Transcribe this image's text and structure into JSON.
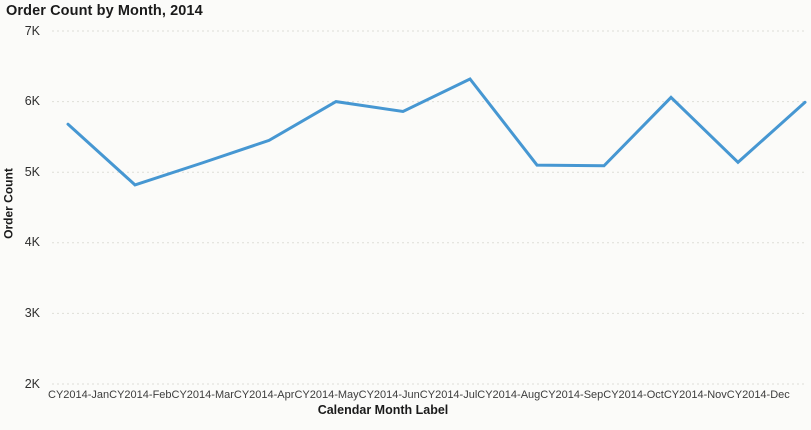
{
  "chart": {
    "title": "Order Count by Month, 2014",
    "y_axis_title": "Order Count",
    "x_axis_title": "Calendar Month Label"
  },
  "chart_data": {
    "type": "line",
    "title": "Order Count by Month, 2014",
    "xlabel": "Calendar Month Label",
    "ylabel": "Order Count",
    "categories": [
      "CY2014-Jan",
      "CY2014-Feb",
      "CY2014-Mar",
      "CY2014-Apr",
      "CY2014-May",
      "CY2014-Jun",
      "CY2014-Jul",
      "CY2014-Aug",
      "CY2014-Sep",
      "CY2014-Oct",
      "CY2014-Nov",
      "CY2014-Dec"
    ],
    "series": [
      {
        "name": "Order Count",
        "values": [
          5680,
          4820,
          5130,
          5450,
          6000,
          5860,
          6320,
          5100,
          5090,
          6060,
          5140,
          5990
        ]
      }
    ],
    "ylim": [
      2000,
      7000
    ],
    "y_ticks": [
      {
        "label": "7K",
        "value": 7000
      },
      {
        "label": "6K",
        "value": 6000
      },
      {
        "label": "5K",
        "value": 5000
      },
      {
        "label": "4K",
        "value": 4000
      },
      {
        "label": "3K",
        "value": 3000
      },
      {
        "label": "2K",
        "value": 2000
      }
    ],
    "grid": "horizontal-dotted",
    "legend": "none"
  },
  "colors": {
    "line": "#4697D2",
    "gridline": "#DEDED8",
    "background": "#FBFBF9",
    "title_text": "#1A1A1A",
    "tick_text": "#3C3C3C"
  }
}
